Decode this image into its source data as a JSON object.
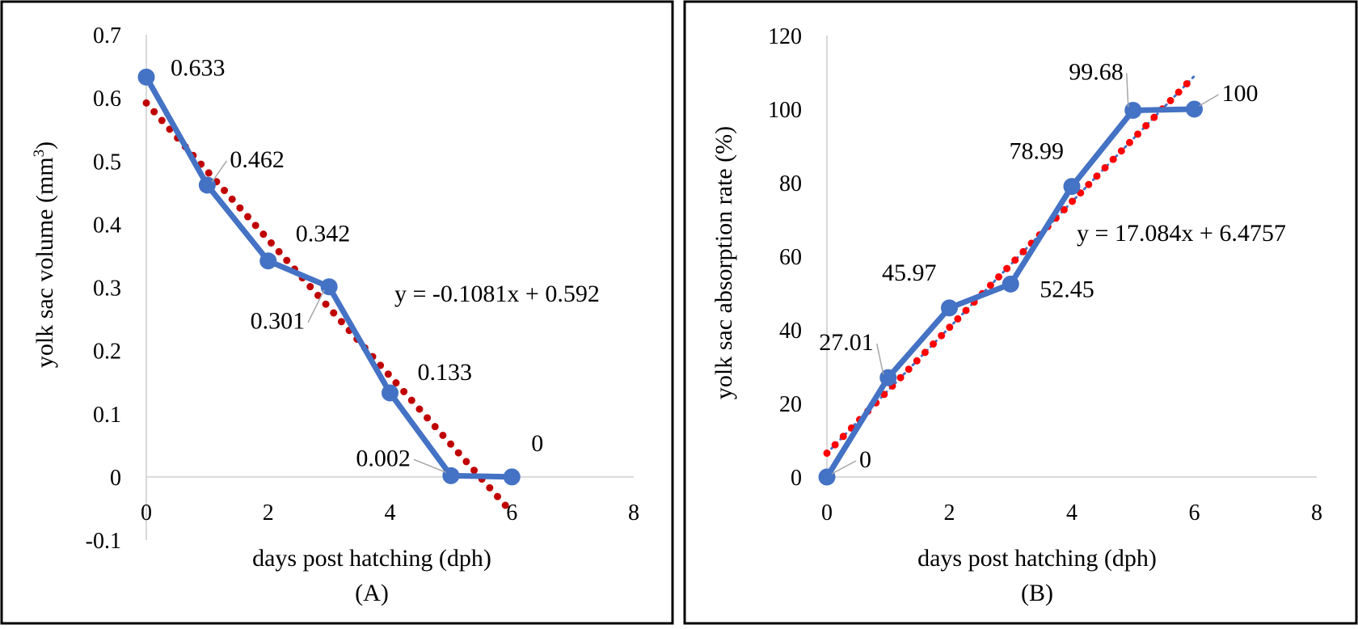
{
  "chart_data": [
    {
      "type": "line",
      "caption": "(A)",
      "xlabel": "days post hatching (dph)",
      "ylabel_main": "yolk sac volume (mm",
      "ylabel_sup": "3",
      "ylabel_close": ")",
      "xlim": [
        0,
        8
      ],
      "ylim": [
        -0.1,
        0.7
      ],
      "xticks": [
        0,
        2,
        4,
        6,
        8
      ],
      "xtick_labels": [
        "0",
        "2",
        "4",
        "6",
        "8"
      ],
      "yticks": [
        -0.1,
        0,
        0.1,
        0.2,
        0.3,
        0.4,
        0.5,
        0.6,
        0.7
      ],
      "ytick_labels": [
        "-0.1",
        "0",
        "0.1",
        "0.2",
        "0.3",
        "0.4",
        "0.5",
        "0.6",
        "0.7"
      ],
      "series": [
        {
          "name": "yolk sac volume",
          "x": [
            0,
            1,
            2,
            3,
            4,
            5,
            6
          ],
          "values": [
            0.633,
            0.462,
            0.342,
            0.301,
            0.133,
            0.002,
            0
          ],
          "labels": [
            "0.633",
            "0.462",
            "0.342",
            "0.301",
            "0.133",
            "0.002",
            "0"
          ],
          "color": "#4472C4"
        }
      ],
      "trendline": {
        "type": "linear",
        "slope": -0.1081,
        "intercept": 0.592,
        "x_range": [
          0,
          6
        ],
        "color": "#C00000",
        "equation": "y = -0.1081x + 0.592"
      }
    },
    {
      "type": "line",
      "caption": "(B)",
      "xlabel": "days post hatching (dph)",
      "ylabel": "yolk sac absorption rate (%)",
      "xlim": [
        0,
        8
      ],
      "ylim": [
        0,
        120
      ],
      "xticks": [
        0,
        2,
        4,
        6,
        8
      ],
      "xtick_labels": [
        "0",
        "2",
        "4",
        "6",
        "8"
      ],
      "yticks": [
        0,
        20,
        40,
        60,
        80,
        100,
        120
      ],
      "ytick_labels": [
        "0",
        "20",
        "40",
        "60",
        "80",
        "100",
        "120"
      ],
      "series": [
        {
          "name": "yolk sac absorption rate",
          "x": [
            0,
            1,
            2,
            3,
            4,
            5,
            6
          ],
          "values": [
            0,
            27.01,
            45.97,
            52.45,
            78.99,
            99.68,
            100
          ],
          "labels": [
            "0",
            "27.01",
            "45.97",
            "52.45",
            "78.99",
            "99.68",
            "100"
          ],
          "color": "#4472C4"
        }
      ],
      "trendline": {
        "type": "linear",
        "slope": 17.084,
        "intercept": 6.4757,
        "x_range": [
          0,
          6
        ],
        "color": "#FF0000",
        "equation": "y = 17.084x + 6.4757"
      }
    }
  ]
}
